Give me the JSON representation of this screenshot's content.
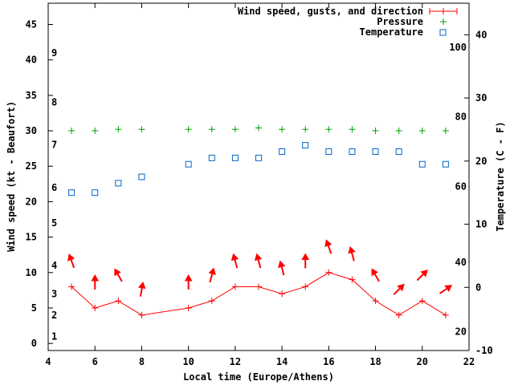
{
  "chart_data": {
    "type": "line",
    "title": "",
    "xlabel": "Local time (Europe/Athens)",
    "ylabel": "Wind speed (kt - Beaufort)",
    "y2label": "Temperature (C - F)",
    "xlim": [
      4,
      22
    ],
    "ylim": [
      -1,
      48
    ],
    "y2lim": [
      -10,
      45
    ],
    "x_ticks": [
      "4",
      "6",
      "8",
      "10",
      "12",
      "14",
      "16",
      "18",
      "20",
      "22"
    ],
    "y_ticks": [
      "0",
      "5",
      "10",
      "15",
      "20",
      "25",
      "30",
      "35",
      "40",
      "45"
    ],
    "y2_ticks": [
      "-10",
      "0",
      "10",
      "20",
      "30",
      "40"
    ],
    "beaufort_labels": [
      {
        "label": "1",
        "y": 1
      },
      {
        "label": "2",
        "y": 4
      },
      {
        "label": "3",
        "y": 7
      },
      {
        "label": "4",
        "y": 11
      },
      {
        "label": "5",
        "y": 17
      },
      {
        "label": "6",
        "y": 22
      },
      {
        "label": "7",
        "y": 28
      },
      {
        "label": "8",
        "y": 34
      },
      {
        "label": "9",
        "y": 41
      }
    ],
    "fahrenheit_labels": [
      {
        "label": "20",
        "y": -7
      },
      {
        "label": "40",
        "y": 4
      },
      {
        "label": "60",
        "y": 16
      },
      {
        "label": "80",
        "y": 27
      },
      {
        "label": "100",
        "y": 38
      }
    ],
    "legend_position": "top-right",
    "series": [
      {
        "name": "Wind speed, gusts, and direction",
        "color": "#ff0000",
        "x": [
          5,
          6,
          7,
          8,
          10,
          11,
          12,
          13,
          14,
          15,
          16,
          17,
          18,
          19,
          20,
          21
        ],
        "values": [
          8,
          5,
          6,
          4,
          5,
          6,
          8,
          8,
          7,
          8,
          10,
          9,
          6,
          4,
          6,
          4
        ],
        "direction_deg": [
          340,
          0,
          330,
          10,
          0,
          15,
          345,
          345,
          345,
          0,
          340,
          345,
          330,
          45,
          45,
          55
        ]
      },
      {
        "name": "Pressure",
        "color": "#00a000",
        "x": [
          5,
          6,
          7,
          8,
          10,
          11,
          12,
          13,
          14,
          15,
          16,
          17,
          18,
          19,
          20,
          21
        ],
        "values": [
          30,
          30,
          30.2,
          30.2,
          30.2,
          30.2,
          30.2,
          30.4,
          30.2,
          30.2,
          30.2,
          30.2,
          30,
          30,
          30,
          30
        ]
      },
      {
        "name": "Temperature",
        "color": "#0066cc",
        "axis": "y2",
        "x": [
          5,
          6,
          7,
          8,
          10,
          11,
          12,
          13,
          14,
          15,
          16,
          17,
          18,
          19,
          20,
          21
        ],
        "values": [
          15,
          15,
          16.5,
          17.5,
          19.5,
          20.5,
          20.5,
          20.5,
          21.5,
          22.5,
          21.5,
          21.5,
          21.5,
          21.5,
          19.5,
          19.5
        ]
      }
    ]
  }
}
